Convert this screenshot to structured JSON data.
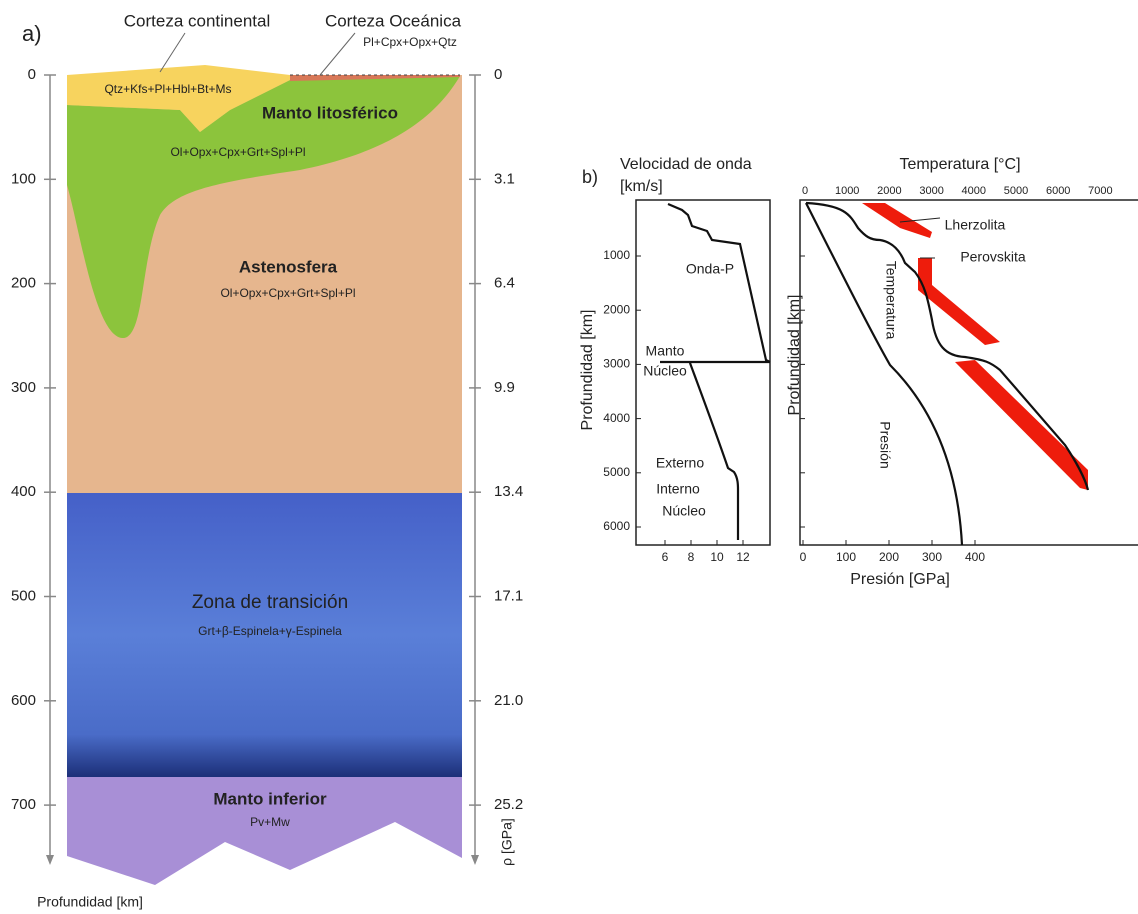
{
  "panel_a": {
    "label": "a)",
    "continental_crust": "Corteza continental",
    "oceanic_crust": "Corteza Oceánica",
    "oceanic_minerals": "Pl+Cpx+Opx+Qtz",
    "continental_minerals": "Qtz+Kfs+Pl+Hbl+Bt+Ms",
    "lithosphere": "Manto litosférico",
    "lithosphere_minerals": "Ol+Opx+Cpx+Grt+Spl+Pl",
    "asthenosphere": "Astenosfera",
    "asthenosphere_minerals": "Ol+Opx+Cpx+Grt+Spl+Pl",
    "transition_zone": "Zona de transición",
    "transition_minerals": "Grt+β-Espinela+γ-Espinela",
    "lower_mantle": "Manto inferior",
    "lower_mantle_minerals": "Pv+Mw",
    "depth_title": "Profundidad [km]",
    "depth_ticks": [
      "0",
      "100",
      "200",
      "300",
      "400",
      "500",
      "600",
      "700"
    ],
    "pressure_title": "ρ [GPa]",
    "pressure_ticks": [
      "0",
      "3.1",
      "6.4",
      "9.9",
      "13.4",
      "17.1",
      "21.0",
      "25.2"
    ]
  },
  "panel_b": {
    "label": "b)",
    "velocity_title": "Velocidad de onda",
    "velocity_unit": "[km/s]",
    "velocity_ticks": [
      "6",
      "8",
      "10",
      "12"
    ],
    "depth_title": "Profundidad [km]",
    "depth_ticks": [
      "1000",
      "2000",
      "3000",
      "4000",
      "5000",
      "6000"
    ],
    "temperature_title": "Temperatura [°C]",
    "temperature_ticks": [
      "0",
      "1000",
      "2000",
      "3000",
      "4000",
      "5000",
      "6000",
      "7000"
    ],
    "pressure_title": "Presión [GPa]",
    "pressure_ticks": [
      "0",
      "100",
      "200",
      "300",
      "400"
    ],
    "annotations": {
      "p_wave": "Onda-P",
      "mantle": "Manto",
      "core": "Núcleo",
      "outer": "Externo",
      "inner": "Interno",
      "core2": "Núcleo",
      "lherzolite": "Lherzolita",
      "perovskite": "Perovskita",
      "temperature": "Temperatura",
      "pressure": "Presión"
    }
  }
}
